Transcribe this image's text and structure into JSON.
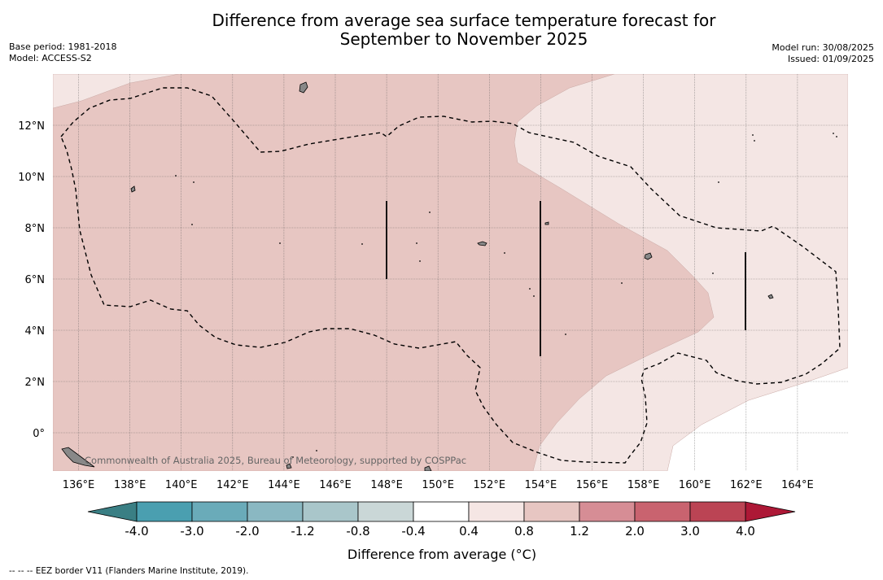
{
  "title_line1": "Difference from average sea surface temperature forecast for",
  "title_line2": "September to November 2025",
  "base_period": "Base period: 1981-2018",
  "model": "Model: ACCESS-S2",
  "model_run": "Model run: 30/08/2025",
  "issued": "Issued: 01/09/2025",
  "copyright": "Commonwealth of Australia 2025, Bureau of Meteorology, supported by COSPPac",
  "footer_note": "--  --  -- EEZ border V11 (Flanders Marine Institute, 2019).",
  "map": {
    "lon_range": [
      135,
      166
    ],
    "lat_range": [
      -1.5,
      13.8
    ],
    "lon_ticks": [
      "136°E",
      "138°E",
      "140°E",
      "142°E",
      "144°E",
      "146°E",
      "148°E",
      "150°E",
      "152°E",
      "154°E",
      "156°E",
      "158°E",
      "160°E",
      "162°E",
      "164°E"
    ],
    "lat_ticks": [
      "12°N",
      "10°N",
      "8°N",
      "6°N",
      "4°N",
      "2°N",
      "0°"
    ],
    "regions": [
      {
        "category": "0.8 to 1.2",
        "color": "#e7c6c2",
        "description": "west and central region"
      },
      {
        "category": "0.4 to 0.8",
        "color": "#f4e6e4",
        "description": "eastern region"
      },
      {
        "category": "-0.4 to 0.4",
        "color": "#ffffff",
        "description": "southeast corner"
      }
    ]
  },
  "colorbar": {
    "label": "Difference from average (°C)",
    "tick_labels": [
      "-4.0",
      "-3.0",
      "-2.0",
      "-1.2",
      "-0.8",
      "-0.4",
      "0.4",
      "0.8",
      "1.2",
      "2.0",
      "3.0",
      "4.0"
    ],
    "colors": [
      "#4a9fb0",
      "#6aabb9",
      "#8ab8c2",
      "#a9c6ca",
      "#cad7d7",
      "#ffffff",
      "#f5e6e4",
      "#e7c6c2",
      "#d68d95",
      "#c9636f",
      "#bb4454"
    ],
    "under_color": "#3a7f84",
    "over_color": "#ad1836"
  }
}
